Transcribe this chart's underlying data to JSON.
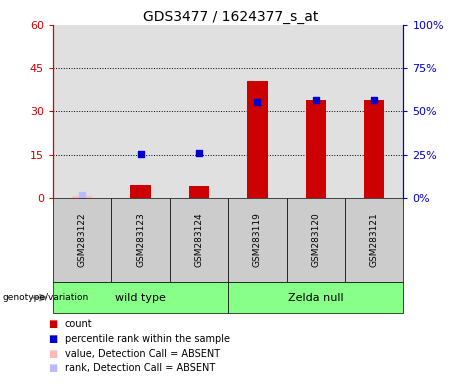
{
  "title": "GDS3477 / 1624377_s_at",
  "categories": [
    "GSM283122",
    "GSM283123",
    "GSM283124",
    "GSM283119",
    "GSM283120",
    "GSM283121"
  ],
  "red_bar_values": [
    0.5,
    4.5,
    4.0,
    40.5,
    34.0,
    34.0
  ],
  "blue_dot_values": [
    1.5,
    25.5,
    26.0,
    55.5,
    56.5,
    56.5
  ],
  "absent_red_values": [
    0.5,
    null,
    null,
    null,
    null,
    null
  ],
  "absent_blue_values": [
    1.5,
    null,
    null,
    null,
    null,
    null
  ],
  "absent_mask": [
    true,
    false,
    false,
    false,
    false,
    false
  ],
  "ylim_left": [
    0,
    60
  ],
  "ylim_right": [
    0,
    100
  ],
  "yticks_left": [
    0,
    15,
    30,
    45,
    60
  ],
  "yticks_right": [
    0,
    25,
    50,
    75,
    100
  ],
  "ytick_labels_left": [
    "0",
    "15",
    "30",
    "45",
    "60"
  ],
  "ytick_labels_right": [
    "0%",
    "25%",
    "50%",
    "75%",
    "100%"
  ],
  "left_axis_color": "#cc0000",
  "right_axis_color": "#0000cc",
  "red_bar_color": "#cc0000",
  "blue_dot_color": "#0000cc",
  "absent_red_color": "#ffbbbb",
  "absent_blue_color": "#bbbbff",
  "bg_plot_color": "#e0e0e0",
  "bg_lower_color": "#cccccc",
  "group_color": "#88ff88",
  "legend_items": [
    {
      "label": "count",
      "color": "#cc0000"
    },
    {
      "label": "percentile rank within the sample",
      "color": "#0000cc"
    },
    {
      "label": "value, Detection Call = ABSENT",
      "color": "#ffbbbb"
    },
    {
      "label": "rank, Detection Call = ABSENT",
      "color": "#bbbbff"
    }
  ],
  "bar_width": 0.35,
  "dot_size": 18,
  "groups_unique": [
    {
      "label": "wild type",
      "start": 0,
      "end": 2
    },
    {
      "label": "Zelda null",
      "start": 3,
      "end": 5
    }
  ]
}
